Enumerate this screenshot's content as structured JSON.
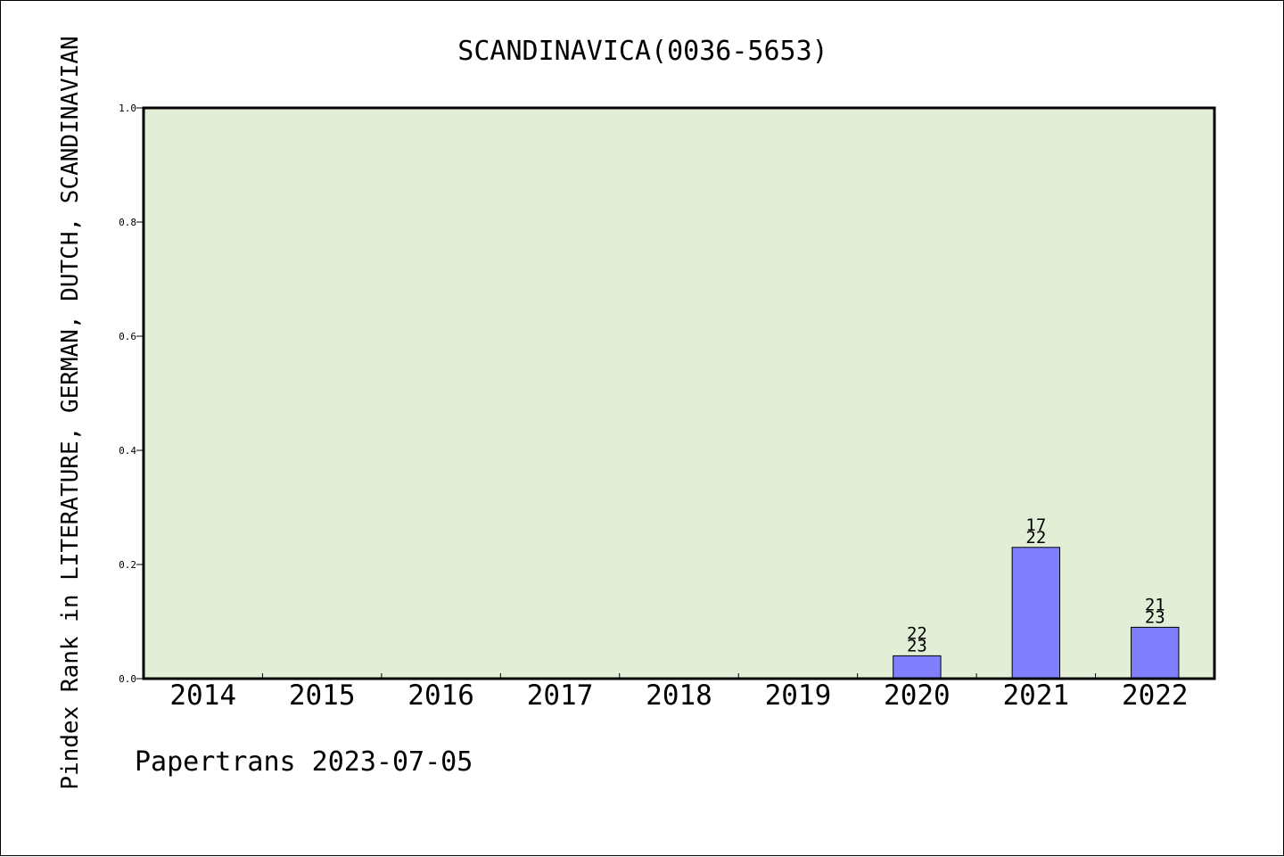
{
  "chart_data": {
    "type": "bar",
    "title": "SCANDINAVICA(0036-5653)",
    "xlabel": "",
    "ylabel": "Pindex Rank in LITERATURE, GERMAN, DUTCH, SCANDINAVIAN",
    "categories": [
      "2014",
      "2015",
      "2016",
      "2017",
      "2018",
      "2019",
      "2020",
      "2021",
      "2022"
    ],
    "values": [
      null,
      null,
      null,
      null,
      null,
      null,
      0.04,
      0.23,
      0.09
    ],
    "bar_labels": [
      null,
      null,
      null,
      null,
      null,
      null,
      [
        "22",
        "23"
      ],
      [
        "17",
        "22"
      ],
      [
        "21",
        "23"
      ]
    ],
    "ylim": [
      0,
      1.0
    ],
    "yticks": [
      "0.0",
      "0.2",
      "0.4",
      "0.6",
      "0.8",
      "1.0"
    ],
    "grid": false,
    "colors": {
      "plot_background": "#e2efd6",
      "bar_fill": "#8080ff",
      "bar_edge": "#000000",
      "axes": "#000000"
    }
  },
  "footer": {
    "credit": "Papertrans 2023-07-05"
  }
}
